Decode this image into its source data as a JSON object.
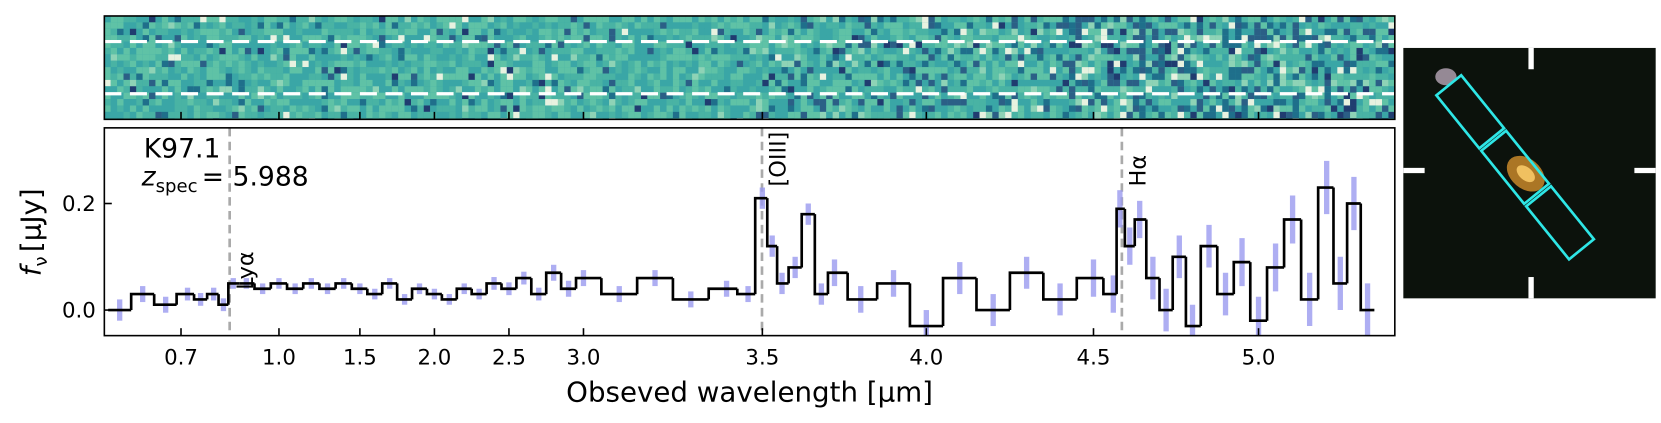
{
  "chart_data": {
    "type": "step",
    "annotations": {
      "name": "K97.1",
      "redshift_symbol": "z",
      "redshift_subscript": "spec",
      "redshift_label": "= 5.988"
    },
    "xlabel": "Obseved wavelength [μm]",
    "ylabel": {
      "symbol": "f",
      "subscript": "ν",
      "unit": "[μJy]"
    },
    "xlim": [
      0.6,
      5.4
    ],
    "xticks": [
      0.7,
      {
        "value": 1.0,
        "label": "1.0"
      },
      1.5,
      {
        "value": 2.0,
        "label": "2.0"
      },
      2.5,
      {
        "value": 3.0,
        "label": "3.0"
      },
      3.5,
      {
        "value": 4.0,
        "label": "4.0"
      },
      4.5,
      {
        "value": 5.0,
        "label": "5.0"
      }
    ],
    "ylim": [
      -0.048,
      0.342
    ],
    "yticks": [
      {
        "value": 0,
        "label": "0.0"
      },
      0.2
    ],
    "lines": [
      {
        "label": "Lyα",
        "x": 0.849
      },
      {
        "label": "[OIII]",
        "x": 3.499
      },
      {
        "label": "Hα",
        "x": 4.586
      }
    ],
    "color": "#000000",
    "error_color": "#9a9af0",
    "x": [
      0.62,
      0.65,
      0.68,
      0.72,
      0.76,
      0.8,
      0.83,
      0.86,
      0.9,
      0.95,
      1.0,
      1.1,
      1.2,
      1.3,
      1.4,
      1.5,
      1.6,
      1.7,
      1.8,
      1.9,
      2.0,
      2.1,
      2.2,
      2.3,
      2.4,
      2.5,
      2.6,
      2.7,
      2.8,
      2.9,
      3.0,
      3.1,
      3.2,
      3.3,
      3.4,
      3.46,
      3.5,
      3.53,
      3.56,
      3.6,
      3.64,
      3.68,
      3.72,
      3.8,
      3.9,
      4.0,
      4.1,
      4.2,
      4.3,
      4.4,
      4.5,
      4.56,
      4.58,
      4.61,
      4.64,
      4.68,
      4.72,
      4.76,
      4.8,
      4.85,
      4.9,
      4.95,
      5.0,
      5.05,
      5.1,
      5.15,
      5.2,
      5.24,
      5.28,
      5.32
    ],
    "values": [
      0.0,
      0.03,
      0.01,
      0.03,
      0.02,
      0.03,
      0.01,
      0.05,
      0.05,
      0.04,
      0.05,
      0.04,
      0.05,
      0.04,
      0.05,
      0.04,
      0.03,
      0.05,
      0.02,
      0.04,
      0.03,
      0.02,
      0.04,
      0.03,
      0.05,
      0.04,
      0.06,
      0.03,
      0.07,
      0.04,
      0.06,
      0.03,
      0.06,
      0.02,
      0.04,
      0.03,
      0.21,
      0.12,
      0.05,
      0.08,
      0.18,
      0.03,
      0.07,
      0.02,
      0.05,
      -0.03,
      0.06,
      0.0,
      0.07,
      0.02,
      0.06,
      0.03,
      0.19,
      0.12,
      0.17,
      0.06,
      0.0,
      0.1,
      -0.03,
      0.12,
      0.03,
      0.09,
      -0.02,
      0.08,
      0.17,
      0.02,
      0.23,
      0.05,
      0.2,
      0.0
    ],
    "errors": [
      0.02,
      0.015,
      0.015,
      0.012,
      0.012,
      0.012,
      0.012,
      0.01,
      0.01,
      0.01,
      0.01,
      0.01,
      0.01,
      0.01,
      0.01,
      0.01,
      0.01,
      0.01,
      0.01,
      0.01,
      0.01,
      0.01,
      0.01,
      0.01,
      0.012,
      0.012,
      0.012,
      0.012,
      0.015,
      0.015,
      0.015,
      0.015,
      0.015,
      0.015,
      0.015,
      0.015,
      0.02,
      0.02,
      0.02,
      0.02,
      0.02,
      0.02,
      0.025,
      0.025,
      0.025,
      0.03,
      0.03,
      0.03,
      0.03,
      0.03,
      0.035,
      0.035,
      0.035,
      0.035,
      0.035,
      0.04,
      0.04,
      0.04,
      0.04,
      0.04,
      0.04,
      0.045,
      0.045,
      0.045,
      0.045,
      0.05,
      0.05,
      0.05,
      0.05,
      0.05
    ]
  }
}
